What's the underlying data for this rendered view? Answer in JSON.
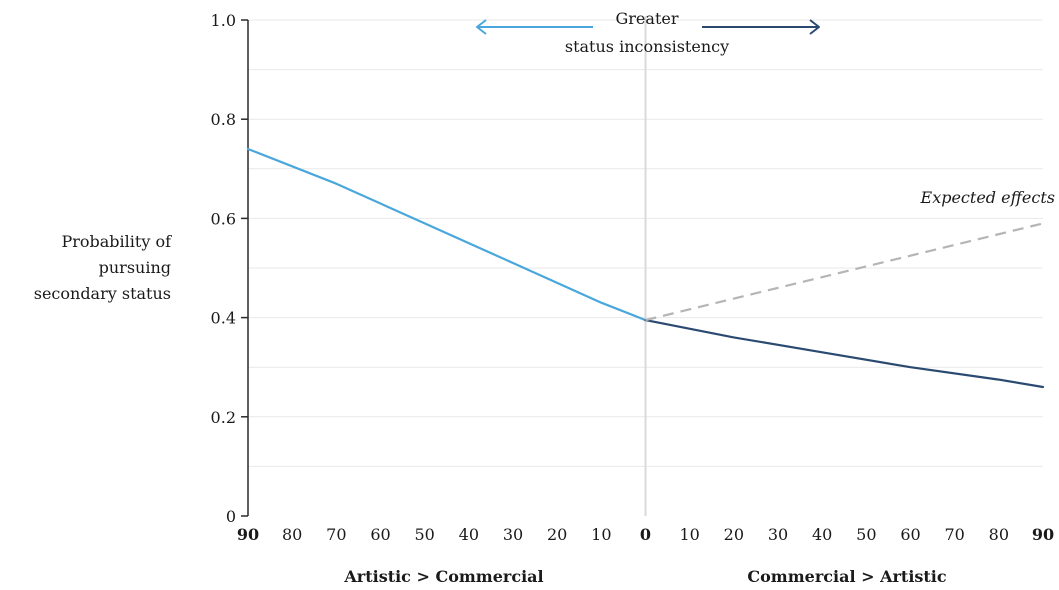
{
  "chart_data": {
    "type": "line",
    "ylabel_lines": [
      "Probability of",
      "pursuing",
      "secondary status"
    ],
    "ylim": [
      0,
      1.0
    ],
    "yticks": [
      {
        "value": 0,
        "label": "0"
      },
      {
        "value": 0.2,
        "label": "0.2"
      },
      {
        "value": 0.4,
        "label": "0.4"
      },
      {
        "value": 0.6,
        "label": "0.6"
      },
      {
        "value": 0.8,
        "label": "0.8"
      },
      {
        "value": 1.0,
        "label": "1.0"
      }
    ],
    "grid_values": [
      0.1,
      0.2,
      0.3,
      0.4,
      0.5,
      0.6,
      0.7,
      0.8,
      0.9,
      1.0
    ],
    "xlim": [
      -90,
      90
    ],
    "xticks": [
      {
        "value": -90,
        "label": "90",
        "bold": true
      },
      {
        "value": -80,
        "label": "80"
      },
      {
        "value": -70,
        "label": "70"
      },
      {
        "value": -60,
        "label": "60"
      },
      {
        "value": -50,
        "label": "50"
      },
      {
        "value": -40,
        "label": "40"
      },
      {
        "value": -30,
        "label": "30"
      },
      {
        "value": -20,
        "label": "20"
      },
      {
        "value": -10,
        "label": "10"
      },
      {
        "value": 0,
        "label": "0",
        "bold": true
      },
      {
        "value": 10,
        "label": "10"
      },
      {
        "value": 20,
        "label": "20"
      },
      {
        "value": 30,
        "label": "30"
      },
      {
        "value": 40,
        "label": "40"
      },
      {
        "value": 50,
        "label": "50"
      },
      {
        "value": 60,
        "label": "60"
      },
      {
        "value": 70,
        "label": "70"
      },
      {
        "value": 80,
        "label": "80"
      },
      {
        "value": 90,
        "label": "90",
        "bold": true
      }
    ],
    "xgroup_labels": {
      "left": "Artistic > Commercial",
      "right": "Commercial > Artistic"
    },
    "series": [
      {
        "key": "artistic",
        "style": "solid",
        "color": "#4aa7dd",
        "points": [
          [
            -90,
            0.74
          ],
          [
            -70,
            0.67
          ],
          [
            -50,
            0.59
          ],
          [
            -30,
            0.51
          ],
          [
            -10,
            0.43
          ],
          [
            0,
            0.395
          ]
        ]
      },
      {
        "key": "commercial",
        "style": "solid",
        "color": "#2b4a72",
        "points": [
          [
            0,
            0.395
          ],
          [
            20,
            0.36
          ],
          [
            40,
            0.33
          ],
          [
            60,
            0.3
          ],
          [
            80,
            0.275
          ],
          [
            90,
            0.26
          ]
        ]
      },
      {
        "key": "expected",
        "style": "dashed",
        "color": "#b5b5b5",
        "points": [
          [
            0,
            0.395
          ],
          [
            90,
            0.59
          ]
        ]
      }
    ],
    "annotations": {
      "expected": "Expected effects",
      "top_line1": "Greater",
      "top_line2": "status inconsistency"
    },
    "arrow_colors": {
      "left": "#4aa7dd",
      "right": "#2b4a72"
    },
    "grid": true,
    "zero_line_color": "#d9d9d9"
  }
}
